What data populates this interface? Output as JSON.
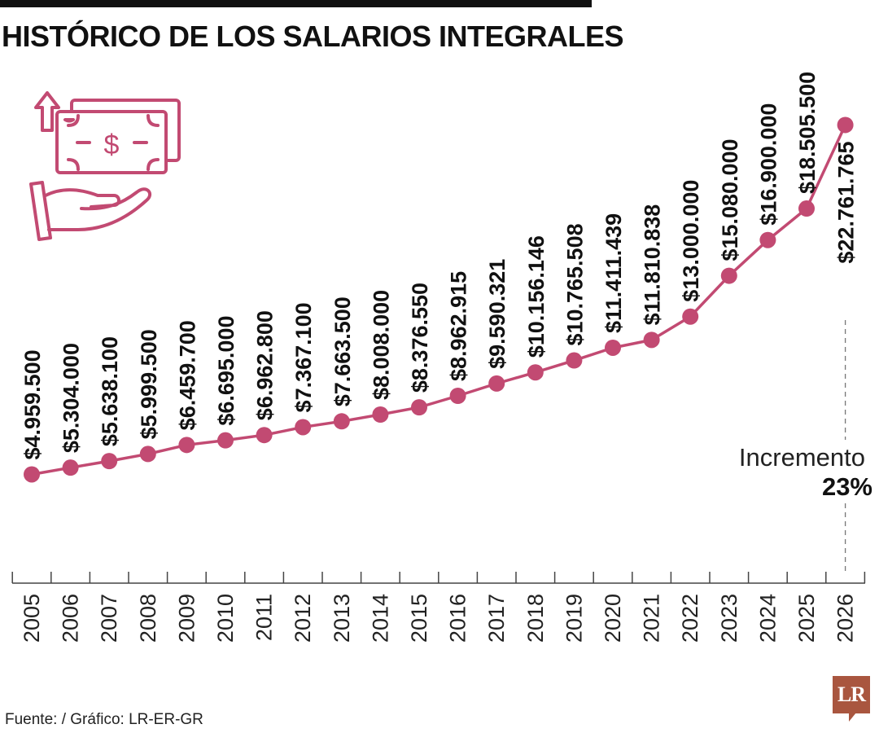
{
  "title": "HISTÓRICO DE LOS SALARIOS INTEGRALES",
  "source": "Fuente: / Gráfico: LR-ER-GR",
  "logo_text": "LR",
  "colors": {
    "series": "#c24a72",
    "icon": "#c24a72",
    "axis": "#444444",
    "logo": "#a9563f"
  },
  "icons": [
    "money-bill-icon",
    "arrow-up-icon",
    "hand-icon"
  ],
  "chart_data": {
    "type": "line",
    "title": "HISTÓRICO DE LOS SALARIOS INTEGRALES",
    "xlabel": "",
    "ylabel": "",
    "ylim": [
      0,
      24000000
    ],
    "grid": false,
    "categories": [
      "2005",
      "2006",
      "2007",
      "2008",
      "2009",
      "2010",
      "2011",
      "2012",
      "2013",
      "2014",
      "2015",
      "2016",
      "2017",
      "2018",
      "2019",
      "2020",
      "2021",
      "2022",
      "2023",
      "2024",
      "2025",
      "2026"
    ],
    "values": [
      4959500,
      5304000,
      5638100,
      5999500,
      6459700,
      6695000,
      6962800,
      7367100,
      7663500,
      8008000,
      8376550,
      8962915,
      9590321,
      10156146,
      10765508,
      11411439,
      11810838,
      13000000,
      15080000,
      16900000,
      18505500,
      22761765
    ],
    "labels": [
      "$4.959.500",
      "$5.304.000",
      "$5.638.100",
      "$5.999.500",
      "$6.459.700",
      "$6.695.000",
      "$6.962.800",
      "$7.367.100",
      "$7.663.500",
      "$8.008.000",
      "$8.376.550",
      "$8.962.915",
      "$9.590.321",
      "$10.156.146",
      "$10.765.508",
      "$11.411.439",
      "$11.810.838",
      "$13.000.000",
      "$15.080.000",
      "$16.900.000",
      "$18.505.500",
      "$22.761.765"
    ],
    "annotation": {
      "label": "Incremento",
      "value": "23%"
    }
  }
}
